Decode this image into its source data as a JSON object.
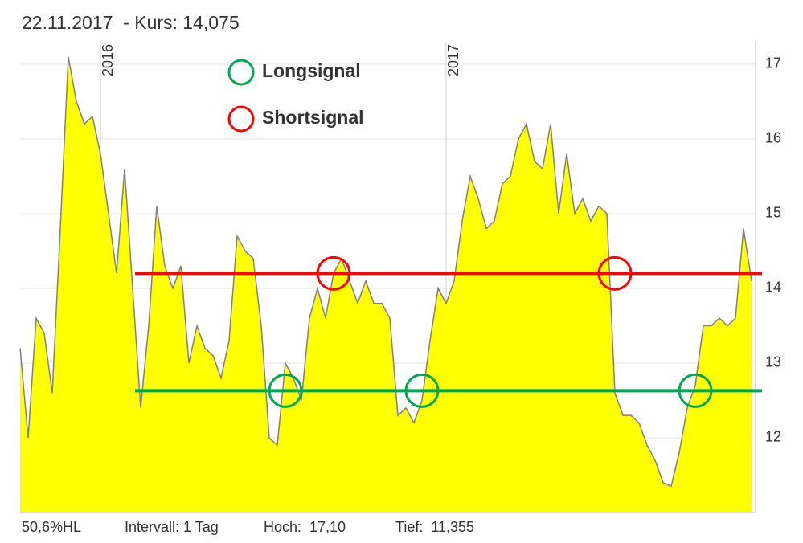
{
  "header": {
    "title": "22.11.2017  - Kurs: 14,075"
  },
  "chart_data": {
    "type": "area",
    "categories": [
      null,
      null,
      null,
      null,
      null,
      null,
      null,
      null,
      null,
      null,
      "2016",
      null,
      null,
      null,
      null,
      null,
      null,
      null,
      null,
      null,
      null,
      null,
      null,
      null,
      null,
      null,
      null,
      null,
      null,
      null,
      null,
      null,
      null,
      null,
      null,
      null,
      null,
      null,
      null,
      null,
      null,
      null,
      null,
      null,
      null,
      null,
      null,
      null,
      null,
      null,
      null,
      null,
      null,
      "2017",
      null,
      null,
      null,
      null,
      null,
      null,
      null,
      null,
      null,
      null,
      null,
      null,
      null,
      null,
      null,
      null,
      null,
      null,
      null,
      null,
      null,
      null,
      null,
      null,
      null,
      null,
      null,
      null,
      null,
      null,
      null,
      null,
      null,
      null,
      null,
      null,
      null,
      null
    ],
    "values": [
      13.2,
      12.0,
      13.6,
      13.4,
      12.6,
      14.8,
      17.1,
      16.5,
      16.2,
      16.3,
      15.8,
      15.0,
      14.2,
      15.6,
      14.0,
      12.4,
      13.5,
      15.1,
      14.3,
      14.0,
      14.3,
      13.0,
      13.5,
      13.2,
      13.1,
      12.8,
      13.3,
      14.7,
      14.5,
      14.4,
      13.5,
      12.0,
      11.9,
      13.0,
      12.8,
      12.5,
      13.6,
      14.0,
      13.6,
      14.2,
      14.4,
      14.1,
      13.8,
      14.1,
      13.8,
      13.8,
      13.6,
      12.3,
      12.4,
      12.2,
      12.5,
      13.3,
      14.0,
      13.8,
      14.1,
      14.9,
      15.5,
      15.2,
      14.8,
      14.9,
      15.4,
      15.5,
      16.0,
      16.2,
      15.7,
      15.6,
      16.2,
      15.0,
      15.8,
      15.0,
      15.2,
      14.9,
      15.1,
      15.0,
      12.6,
      12.3,
      12.3,
      12.2,
      11.9,
      11.7,
      11.4,
      11.35,
      11.8,
      12.4,
      12.7,
      13.5,
      13.5,
      13.6,
      13.5,
      13.6,
      14.8,
      14.1
    ],
    "color": "#ffff00",
    "line_color": "#808080",
    "ylim": [
      11.0,
      17.3
    ],
    "yticks": [
      12,
      13,
      14,
      15,
      16,
      17
    ],
    "grid": true,
    "levels": [
      {
        "name": "Longsignal",
        "color": "#00a651",
        "value": 12.63,
        "signals": [
          33,
          50,
          84
        ]
      },
      {
        "name": "Shortsignal",
        "color": "#ff0000",
        "value": 14.2,
        "signals": [
          39,
          74
        ]
      }
    ]
  },
  "footer": [
    "50,6%HL",
    "Intervall: 1 Tag",
    "Hoch:  17,10",
    "Tief:  11,355"
  ]
}
